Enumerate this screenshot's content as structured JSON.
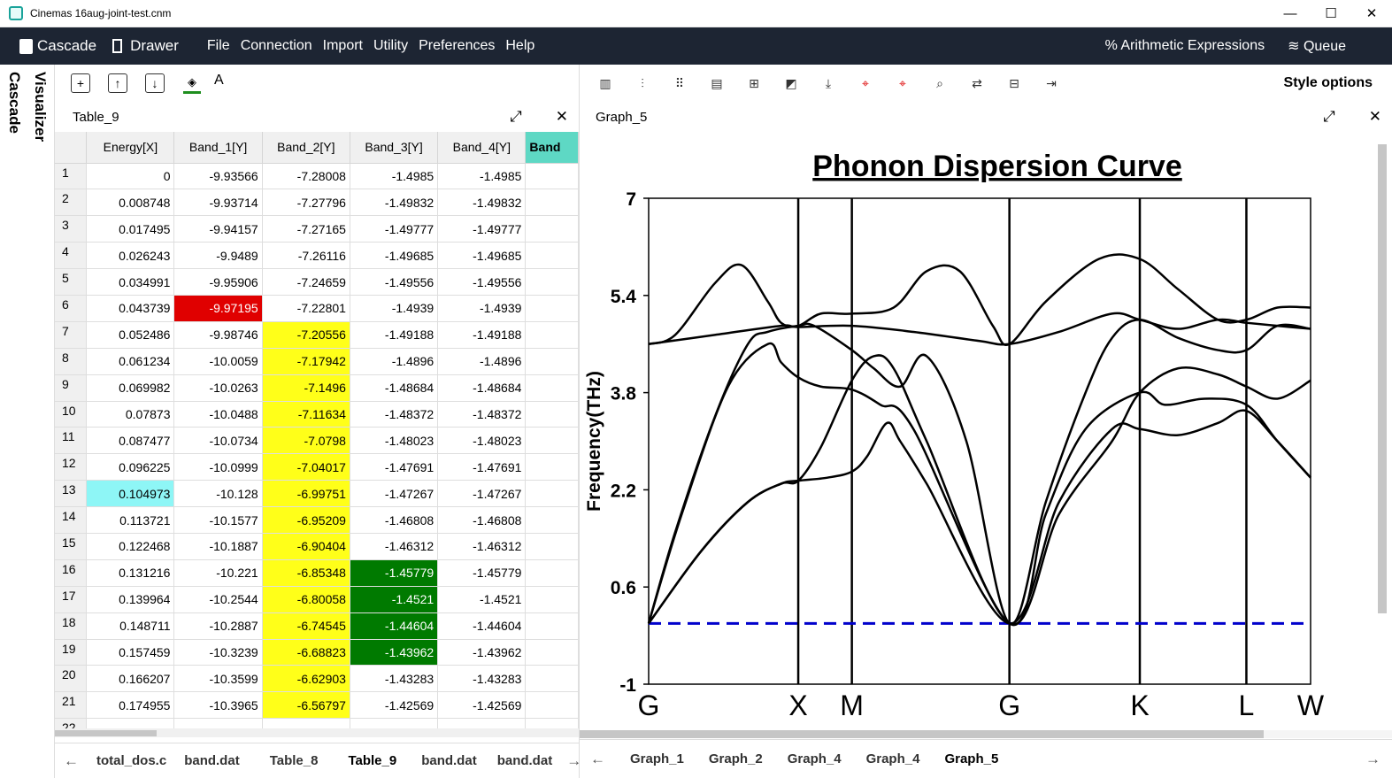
{
  "window": {
    "title": "Cinemas 16aug-joint-test.cnm",
    "controls": [
      "—",
      "☐",
      "✕"
    ]
  },
  "menubar": {
    "brand": "Cascade",
    "drawer": "Drawer",
    "menus": [
      "File",
      "Connection",
      "Import",
      "Utility",
      "Preferences",
      "Help"
    ],
    "arith": "% Arithmetic Expressions",
    "queue": "Queue"
  },
  "side_tabs": {
    "cascade": "Cascade",
    "visualizer": "Visualizer"
  },
  "left_panel": {
    "toolbar_font_label": "A",
    "title": "Table_9",
    "columns": [
      "Energy[X]",
      "Band_1[Y]",
      "Band_2[Y]",
      "Band_3[Y]",
      "Band_4[Y]",
      "Band"
    ],
    "rows": [
      {
        "n": "1",
        "e": "0",
        "b1": "-9.93566",
        "b2": "-7.28008",
        "b3": "-1.4985",
        "b4": "-1.4985"
      },
      {
        "n": "2",
        "e": "0.008748",
        "b1": "-9.93714",
        "b2": "-7.27796",
        "b3": "-1.49832",
        "b4": "-1.49832"
      },
      {
        "n": "3",
        "e": "0.017495",
        "b1": "-9.94157",
        "b2": "-7.27165",
        "b3": "-1.49777",
        "b4": "-1.49777"
      },
      {
        "n": "4",
        "e": "0.026243",
        "b1": "-9.9489",
        "b2": "-7.26116",
        "b3": "-1.49685",
        "b4": "-1.49685"
      },
      {
        "n": "5",
        "e": "0.034991",
        "b1": "-9.95906",
        "b2": "-7.24659",
        "b3": "-1.49556",
        "b4": "-1.49556"
      },
      {
        "n": "6",
        "e": "0.043739",
        "b1": "-9.97195",
        "b2": "-7.22801",
        "b3": "-1.4939",
        "b4": "-1.4939"
      },
      {
        "n": "7",
        "e": "0.052486",
        "b1": "-9.98746",
        "b2": "-7.20556",
        "b3": "-1.49188",
        "b4": "-1.49188"
      },
      {
        "n": "8",
        "e": "0.061234",
        "b1": "-10.0059",
        "b2": "-7.17942",
        "b3": "-1.4896",
        "b4": "-1.4896"
      },
      {
        "n": "9",
        "e": "0.069982",
        "b1": "-10.0263",
        "b2": "-7.1496",
        "b3": "-1.48684",
        "b4": "-1.48684"
      },
      {
        "n": "10",
        "e": "0.07873",
        "b1": "-10.0488",
        "b2": "-7.11634",
        "b3": "-1.48372",
        "b4": "-1.48372"
      },
      {
        "n": "11",
        "e": "0.087477",
        "b1": "-10.0734",
        "b2": "-7.0798",
        "b3": "-1.48023",
        "b4": "-1.48023"
      },
      {
        "n": "12",
        "e": "0.096225",
        "b1": "-10.0999",
        "b2": "-7.04017",
        "b3": "-1.47691",
        "b4": "-1.47691"
      },
      {
        "n": "13",
        "e": "0.104973",
        "b1": "-10.128",
        "b2": "-6.99751",
        "b3": "-1.47267",
        "b4": "-1.47267"
      },
      {
        "n": "14",
        "e": "0.113721",
        "b1": "-10.1577",
        "b2": "-6.95209",
        "b3": "-1.46808",
        "b4": "-1.46808"
      },
      {
        "n": "15",
        "e": "0.122468",
        "b1": "-10.1887",
        "b2": "-6.90404",
        "b3": "-1.46312",
        "b4": "-1.46312"
      },
      {
        "n": "16",
        "e": "0.131216",
        "b1": "-10.221",
        "b2": "-6.85348",
        "b3": "-1.45779",
        "b4": "-1.45779"
      },
      {
        "n": "17",
        "e": "0.139964",
        "b1": "-10.2544",
        "b2": "-6.80058",
        "b3": "-1.4521",
        "b4": "-1.4521"
      },
      {
        "n": "18",
        "e": "0.148711",
        "b1": "-10.2887",
        "b2": "-6.74545",
        "b3": "-1.44604",
        "b4": "-1.44604"
      },
      {
        "n": "19",
        "e": "0.157459",
        "b1": "-10.3239",
        "b2": "-6.68823",
        "b3": "-1.43962",
        "b4": "-1.43962"
      },
      {
        "n": "20",
        "e": "0.166207",
        "b1": "-10.3599",
        "b2": "-6.62903",
        "b3": "-1.43283",
        "b4": "-1.43283"
      },
      {
        "n": "21",
        "e": "0.174955",
        "b1": "-10.3965",
        "b2": "-6.56797",
        "b3": "-1.42569",
        "b4": "-1.42569"
      },
      {
        "n": "22",
        "e": "",
        "b1": "",
        "b2": "",
        "b3": "",
        "b4": ""
      }
    ],
    "highlight_colors": {
      "red": "#e00000",
      "yellow": "#ffff19",
      "green": "#007a00",
      "cyan": "#8ef6f6"
    },
    "tabs": [
      "total_dos.c",
      "band.dat",
      "Table_8",
      "Table_9",
      "band.dat",
      "band.dat"
    ],
    "active_tab": "Table_9"
  },
  "right_panel": {
    "style_options": "Style options",
    "title": "Graph_5",
    "tabs": [
      "Graph_1",
      "Graph_2",
      "Graph_4",
      "Graph_4",
      "Graph_5"
    ],
    "active_tab": "Graph_5"
  },
  "chart_data": {
    "type": "line",
    "title": "Phonon Dispersion Curve",
    "ylabel": "Frequency(THz)",
    "xlabel": "",
    "ylim": [
      -1,
      7
    ],
    "yticks": [
      "7",
      "5.4",
      "3.8",
      "2.2",
      "0.6",
      "-1"
    ],
    "xlim": [
      0,
      1
    ],
    "high_symmetry_points": [
      {
        "label": "G",
        "x": 0.0
      },
      {
        "label": "X",
        "x": 0.226
      },
      {
        "label": "M",
        "x": 0.307
      },
      {
        "label": "G",
        "x": 0.545
      },
      {
        "label": "K",
        "x": 0.742
      },
      {
        "label": "L",
        "x": 0.903
      },
      {
        "label": "W",
        "x": 1.0
      }
    ],
    "reference_line": {
      "y": 0,
      "style": "dashed",
      "color": "#0000cc"
    },
    "series": [
      {
        "values": [
          [
            0,
            4.6
          ],
          [
            0.04,
            4.75
          ],
          [
            0.1,
            5.6
          ],
          [
            0.14,
            5.9
          ],
          [
            0.18,
            5.3
          ],
          [
            0.2,
            4.95
          ],
          [
            0.226,
            4.9
          ],
          [
            0.26,
            5.1
          ],
          [
            0.307,
            5.1
          ],
          [
            0.37,
            5.2
          ],
          [
            0.42,
            5.8
          ],
          [
            0.47,
            5.8
          ],
          [
            0.52,
            4.9
          ],
          [
            0.545,
            4.6
          ],
          [
            0.6,
            5.3
          ],
          [
            0.68,
            6
          ],
          [
            0.742,
            6.0
          ],
          [
            0.8,
            5.5
          ],
          [
            0.86,
            5.0
          ],
          [
            0.903,
            5.0
          ],
          [
            0.95,
            5.2
          ],
          [
            1.0,
            5.2
          ]
        ]
      },
      {
        "values": [
          [
            0,
            4.6
          ],
          [
            0.1,
            4.75
          ],
          [
            0.2,
            4.9
          ],
          [
            0.226,
            4.88
          ],
          [
            0.307,
            4.9
          ],
          [
            0.4,
            4.8
          ],
          [
            0.5,
            4.65
          ],
          [
            0.545,
            4.6
          ],
          [
            0.62,
            4.8
          ],
          [
            0.7,
            5.1
          ],
          [
            0.742,
            5.0
          ],
          [
            0.8,
            4.85
          ],
          [
            0.86,
            5.0
          ],
          [
            0.903,
            4.95
          ],
          [
            0.95,
            4.9
          ],
          [
            1.0,
            4.85
          ]
        ]
      },
      {
        "values": [
          [
            0,
            0
          ],
          [
            0.04,
            1.5
          ],
          [
            0.1,
            3.4
          ],
          [
            0.15,
            4.6
          ],
          [
            0.18,
            4.8
          ],
          [
            0.226,
            4.9
          ],
          [
            0.25,
            4.9
          ],
          [
            0.307,
            4.5
          ],
          [
            0.34,
            4.2
          ],
          [
            0.38,
            3.9
          ],
          [
            0.42,
            4.4
          ],
          [
            0.48,
            3.0
          ],
          [
            0.545,
            0
          ],
          [
            0.6,
            2.0
          ],
          [
            0.66,
            3.8
          ],
          [
            0.7,
            4.7
          ],
          [
            0.742,
            5.0
          ],
          [
            0.8,
            4.7
          ],
          [
            0.86,
            4.5
          ],
          [
            0.903,
            4.5
          ],
          [
            0.95,
            4.9
          ],
          [
            1.0,
            4.85
          ]
        ]
      },
      {
        "values": [
          [
            0,
            0
          ],
          [
            0.05,
            1.8
          ],
          [
            0.12,
            3.9
          ],
          [
            0.18,
            4.6
          ],
          [
            0.2,
            4.3
          ],
          [
            0.226,
            4.05
          ],
          [
            0.26,
            3.9
          ],
          [
            0.307,
            3.85
          ],
          [
            0.35,
            3.6
          ],
          [
            0.4,
            3.2
          ],
          [
            0.545,
            0
          ],
          [
            0.6,
            1.8
          ],
          [
            0.66,
            3.2
          ],
          [
            0.742,
            3.8
          ],
          [
            0.78,
            3.6
          ],
          [
            0.84,
            3.7
          ],
          [
            0.903,
            3.6
          ],
          [
            0.95,
            3.0
          ],
          [
            1.0,
            2.4
          ]
        ]
      },
      {
        "values": [
          [
            0,
            0
          ],
          [
            0.08,
            1.2
          ],
          [
            0.15,
            2.0
          ],
          [
            0.2,
            2.3
          ],
          [
            0.226,
            2.35
          ],
          [
            0.27,
            2.4
          ],
          [
            0.307,
            2.5
          ],
          [
            0.33,
            2.75
          ],
          [
            0.36,
            3.3
          ],
          [
            0.38,
            3.0
          ],
          [
            0.42,
            2.3
          ],
          [
            0.545,
            0
          ],
          [
            0.62,
            2.0
          ],
          [
            0.7,
            3.2
          ],
          [
            0.742,
            3.2
          ],
          [
            0.8,
            3.1
          ],
          [
            0.86,
            3.3
          ],
          [
            0.903,
            3.5
          ],
          [
            0.95,
            3.0
          ],
          [
            1.0,
            2.4
          ]
        ]
      },
      {
        "values": [
          [
            0,
            0
          ],
          [
            0.08,
            1.2
          ],
          [
            0.15,
            2.0
          ],
          [
            0.2,
            2.3
          ],
          [
            0.226,
            2.35
          ],
          [
            0.26,
            2.9
          ],
          [
            0.307,
            4.0
          ],
          [
            0.34,
            4.4
          ],
          [
            0.37,
            4.2
          ],
          [
            0.42,
            3.0
          ],
          [
            0.545,
            0
          ],
          [
            0.62,
            1.8
          ],
          [
            0.7,
            3.0
          ],
          [
            0.742,
            3.8
          ],
          [
            0.8,
            4.2
          ],
          [
            0.86,
            4.1
          ],
          [
            0.903,
            3.9
          ],
          [
            0.95,
            3.7
          ],
          [
            1.0,
            4.0
          ]
        ]
      }
    ]
  }
}
